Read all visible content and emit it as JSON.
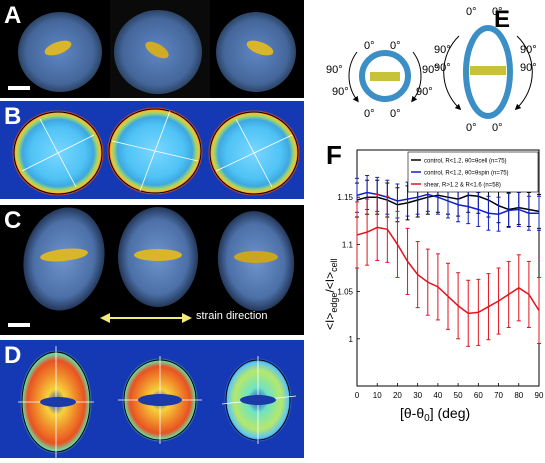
{
  "panels": {
    "A": {
      "label": "A"
    },
    "B": {
      "label": "B"
    },
    "C": {
      "label": "C",
      "caption": "strain direction"
    },
    "D": {
      "label": "D"
    },
    "E": {
      "label": "E",
      "angle_zero": "0°",
      "angle_ninety": "90°"
    },
    "F": {
      "label": "F"
    }
  },
  "colors": {
    "cell_blue": "#5d7fb5",
    "chromosome_yellow": "#d9b52a",
    "ring_blue": "#3b8fc6",
    "band_yellow": "#c7c23a",
    "arrow_yellow": "#f1ec7a"
  },
  "chart_data": {
    "type": "line",
    "xlabel": "[θ-θ0] (deg)",
    "ylabel": "<I>edge/<I>cell",
    "xlim": [
      0,
      90
    ],
    "ylim": [
      0.95,
      1.2
    ],
    "xticks": [
      0,
      10,
      20,
      30,
      40,
      50,
      60,
      70,
      80,
      90
    ],
    "yticks": [
      1.0,
      1.05,
      1.1,
      1.15
    ],
    "ytick_labels": [
      "1",
      "1.05",
      "1.1",
      "1.15"
    ],
    "x": [
      0,
      5,
      10,
      15,
      20,
      25,
      30,
      35,
      40,
      45,
      50,
      55,
      60,
      65,
      70,
      75,
      80,
      85,
      90
    ],
    "series": [
      {
        "name": "control, R<1.2, θ0=θcell (n=75)",
        "color": "#000000",
        "values": [
          1.147,
          1.15,
          1.15,
          1.147,
          1.142,
          1.144,
          1.147,
          1.15,
          1.152,
          1.15,
          1.148,
          1.152,
          1.151,
          1.147,
          1.141,
          1.137,
          1.139,
          1.137,
          1.135
        ],
        "err": 0.018
      },
      {
        "name": "control, R<1.2, θ0=θspin (n=75)",
        "color": "#1020c8",
        "values": [
          1.152,
          1.155,
          1.153,
          1.15,
          1.146,
          1.148,
          1.15,
          1.153,
          1.15,
          1.146,
          1.142,
          1.14,
          1.137,
          1.133,
          1.132,
          1.136,
          1.137,
          1.133,
          1.133
        ],
        "err": 0.018
      },
      {
        "name": "shear,   R>1.2 & R<1.6  (n=58)",
        "color": "#e0141e",
        "values": [
          1.11,
          1.113,
          1.118,
          1.116,
          1.1,
          1.082,
          1.068,
          1.06,
          1.055,
          1.045,
          1.035,
          1.027,
          1.028,
          1.034,
          1.04,
          1.047,
          1.054,
          1.047,
          1.03
        ],
        "err": 0.035
      }
    ],
    "legend_position": "top-right"
  }
}
